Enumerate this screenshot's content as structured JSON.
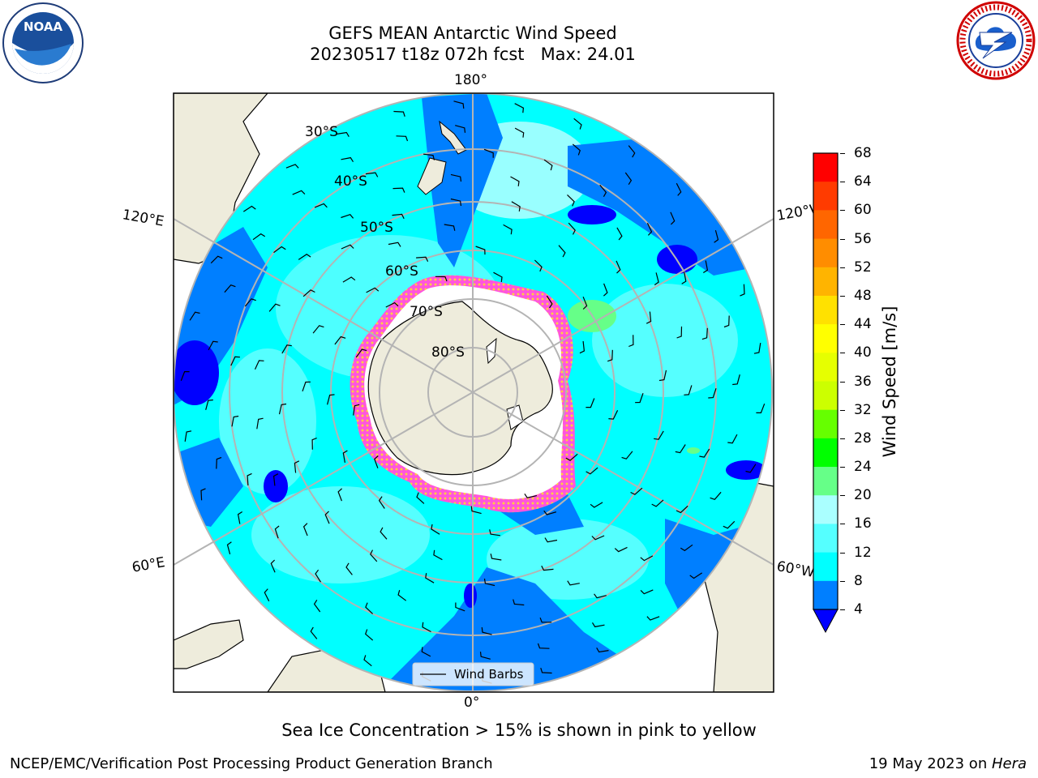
{
  "title": "GEFS MEAN Antarctic Wind Speed",
  "subtitle": "20230517 t18z 072h fcst   Max: 24.01",
  "logos": {
    "left": "noaa-logo",
    "left_text": "NOAA",
    "right": "nws-logo",
    "right_text": "NATIONAL WEATHER SERVICE"
  },
  "map": {
    "projection": "south-polar-stereographic",
    "lon_labels": {
      "top": "180°",
      "upper_left": "120°E",
      "upper_right": "120°W",
      "lower_left": "60°E",
      "lower_right": "60°W",
      "bottom": "0°"
    },
    "lat_labels": [
      "30°S",
      "40°S",
      "50°S",
      "60°S",
      "70°S",
      "80°S"
    ],
    "legend_label": "Wind Barbs",
    "colors": {
      "ocean_base": "#00ffff",
      "land": "#eeecdc",
      "ice": "#ffffff",
      "ice_edge": "#ff44dd",
      "grid": "#b4b4b4"
    }
  },
  "colorbar": {
    "label": "Wind Speed [m/s]",
    "ticks": [
      "68",
      "64",
      "60",
      "56",
      "52",
      "48",
      "44",
      "40",
      "36",
      "32",
      "28",
      "24",
      "20",
      "16",
      "12",
      "8",
      "4"
    ],
    "colors": [
      "#ff0000",
      "#ff3b00",
      "#ff6600",
      "#ff8d00",
      "#ffb400",
      "#ffe100",
      "#ffff00",
      "#e6ff00",
      "#ccff00",
      "#66ff00",
      "#00ff00",
      "#66ff88",
      "#aaffff",
      "#55ffff",
      "#00ffff",
      "#007fff",
      "#0000ff"
    ],
    "extend_color": "#0000ff"
  },
  "caption": "Sea Ice Concentration > 15% is shown in pink to yellow",
  "footer": {
    "left": "NCEP/EMC/Verification Post Processing Product Generation Branch",
    "right_date": "19 May 2023 on ",
    "right_host": "Hera"
  }
}
